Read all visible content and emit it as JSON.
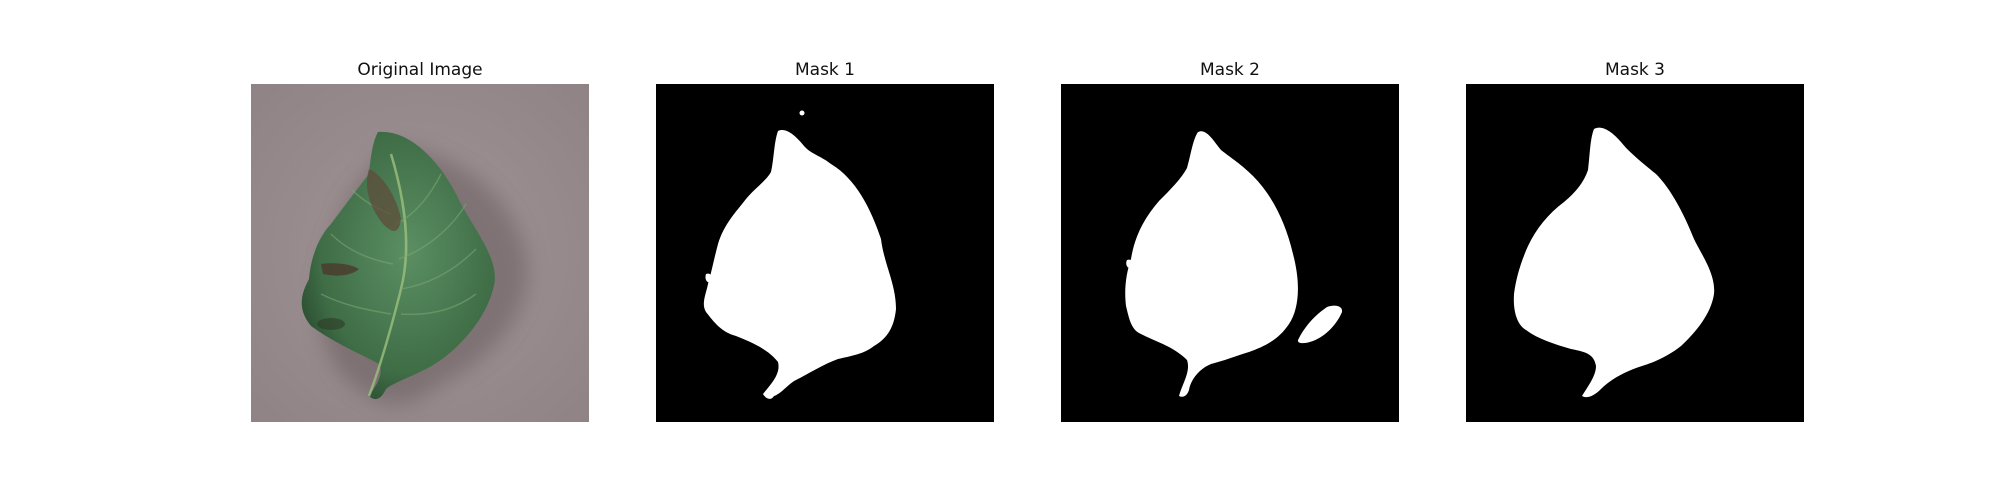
{
  "panels": [
    {
      "title": "Original Image"
    },
    {
      "title": "Mask 1"
    },
    {
      "title": "Mask 2"
    },
    {
      "title": "Mask 3"
    }
  ],
  "colors": {
    "background": "#ffffff",
    "mask_background": "#000000",
    "mask_foreground": "#ffffff",
    "leaf_green": "#3f6d46",
    "surface_gray": "#9c8f91"
  }
}
